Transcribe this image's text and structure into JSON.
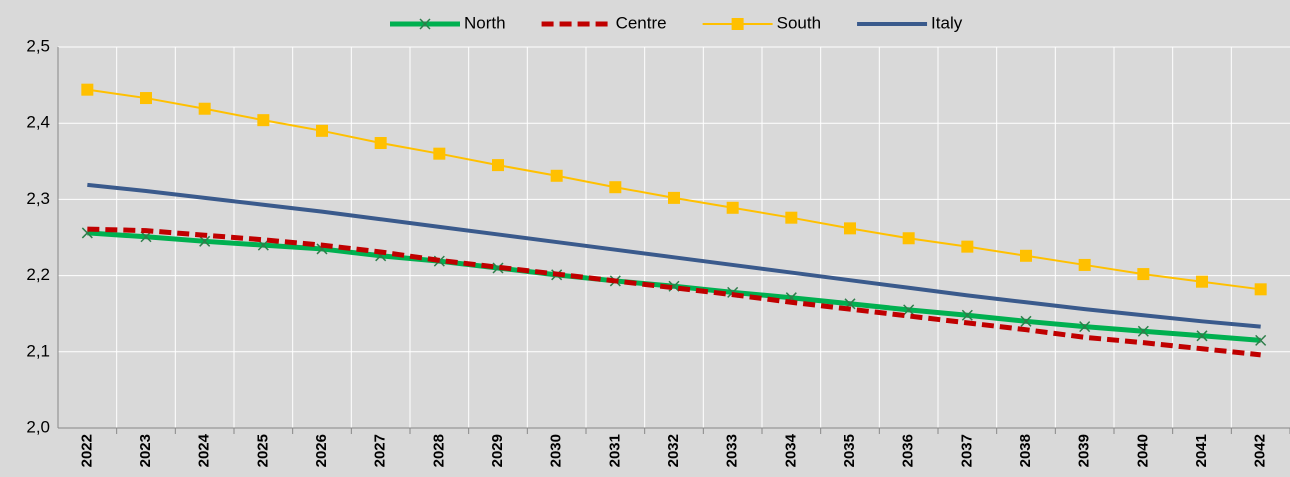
{
  "chart_data": {
    "type": "line",
    "categories": [
      "2022",
      "2023",
      "2024",
      "2025",
      "2026",
      "2027",
      "2028",
      "2029",
      "2030",
      "2031",
      "2032",
      "2033",
      "2034",
      "2035",
      "2036",
      "2037",
      "2038",
      "2039",
      "2040",
      "2041",
      "2042"
    ],
    "series": [
      {
        "name": "North",
        "color": "#00b050",
        "marker": "x",
        "dash": false,
        "width": 5,
        "values": [
          2.256,
          2.251,
          2.245,
          2.24,
          2.235,
          2.226,
          2.219,
          2.21,
          2.201,
          2.193,
          2.186,
          2.178,
          2.171,
          2.163,
          2.155,
          2.148,
          2.14,
          2.133,
          2.127,
          2.121,
          2.115
        ]
      },
      {
        "name": "Centre",
        "color": "#c00000",
        "marker": "none",
        "dash": true,
        "width": 5,
        "values": [
          2.261,
          2.259,
          2.253,
          2.247,
          2.24,
          2.231,
          2.22,
          2.211,
          2.202,
          2.193,
          2.184,
          2.175,
          2.165,
          2.156,
          2.147,
          2.138,
          2.129,
          2.119,
          2.112,
          2.104,
          2.096
        ]
      },
      {
        "name": "South",
        "color": "#ffc000",
        "marker": "square",
        "dash": false,
        "width": 2,
        "values": [
          2.444,
          2.433,
          2.419,
          2.404,
          2.39,
          2.374,
          2.36,
          2.345,
          2.331,
          2.316,
          2.302,
          2.289,
          2.276,
          2.262,
          2.249,
          2.238,
          2.226,
          2.214,
          2.202,
          2.192,
          2.182
        ]
      },
      {
        "name": "Italy",
        "color": "#3a5a8c",
        "marker": "none",
        "dash": false,
        "width": 4,
        "values": [
          2.319,
          2.311,
          2.302,
          2.293,
          2.284,
          2.274,
          2.264,
          2.254,
          2.244,
          2.234,
          2.224,
          2.214,
          2.204,
          2.194,
          2.184,
          2.174,
          2.165,
          2.156,
          2.148,
          2.14,
          2.133
        ]
      }
    ],
    "ylim": [
      2.0,
      2.5
    ],
    "yticks": [
      {
        "value": 2.0,
        "label": "2,0"
      },
      {
        "value": 2.1,
        "label": "2,1"
      },
      {
        "value": 2.2,
        "label": "2,2"
      },
      {
        "value": 2.3,
        "label": "2,3"
      },
      {
        "value": 2.4,
        "label": "2,4"
      },
      {
        "value": 2.5,
        "label": "2,5"
      }
    ],
    "grid": true,
    "legend": "top"
  }
}
